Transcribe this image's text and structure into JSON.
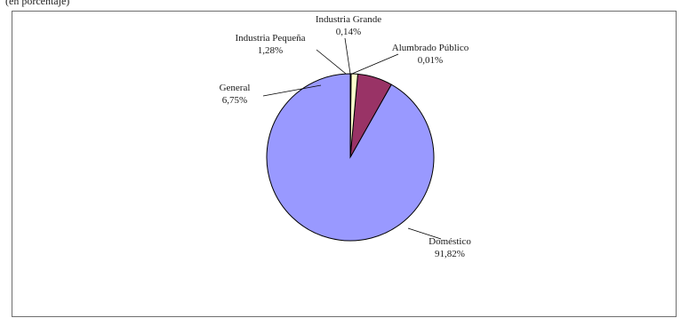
{
  "caption_fragment": "(en porcentaje)",
  "chart_data": {
    "type": "pie",
    "slices": [
      {
        "name": "Doméstico",
        "value": 91.82,
        "label": "91,82%",
        "color": "#9999ff"
      },
      {
        "name": "General",
        "value": 6.75,
        "label": "6,75%",
        "color": "#993366"
      },
      {
        "name": "Industria Pequeña",
        "value": 1.28,
        "label": "1,28%",
        "color": "#ffffcc"
      },
      {
        "name": "Industria Grande",
        "value": 0.14,
        "label": "0,14%",
        "color": "#ccffff"
      },
      {
        "name": "Alumbrado Público",
        "value": 0.01,
        "label": "0,01%",
        "color": "#660066"
      }
    ]
  }
}
